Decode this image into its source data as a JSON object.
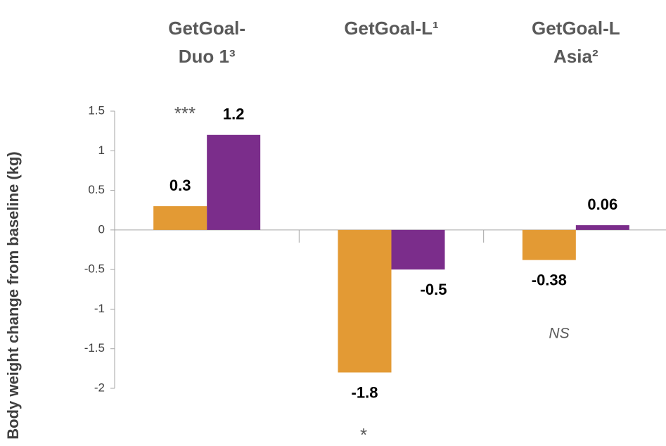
{
  "chart_data": {
    "type": "bar",
    "y_label": "Body weight change from baseline (kg)",
    "categories": [
      "GetGoal-Duo 1³",
      "GetGoal-L¹",
      "GetGoal-L Asia²"
    ],
    "series": [
      {
        "color": "#e39a34",
        "values": [
          0.3,
          -1.8,
          -0.38
        ]
      },
      {
        "color": "#7b2d8b",
        "values": [
          1.2,
          -0.5,
          0.06
        ]
      }
    ],
    "annotations": [
      "***",
      "*",
      "NS"
    ],
    "ylim": [
      -2,
      1.5
    ],
    "yticks": [
      1.5,
      1,
      0.5,
      0,
      -0.5,
      -1,
      -1.5,
      -2
    ]
  }
}
